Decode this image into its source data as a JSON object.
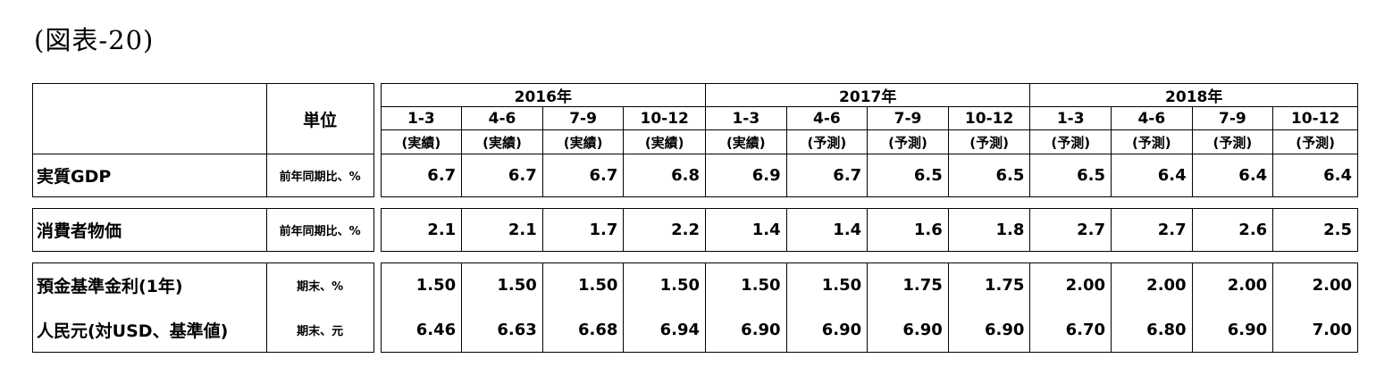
{
  "title": "(図表-20)",
  "unit_header": "単位",
  "years": [
    {
      "label": "2016年"
    },
    {
      "label": "2017年"
    },
    {
      "label": "2018年"
    }
  ],
  "quarters": [
    "1-3",
    "4-6",
    "7-9",
    "10-12",
    "1-3",
    "4-6",
    "7-9",
    "10-12",
    "1-3",
    "4-6",
    "7-9",
    "10-12"
  ],
  "kinds": [
    "(実績)",
    "(実績)",
    "(実績)",
    "(実績)",
    "(実績)",
    "(予測)",
    "(予測)",
    "(予測)",
    "(予測)",
    "(予測)",
    "(予測)",
    "(予測)"
  ],
  "rows": [
    {
      "label": "実質GDP",
      "unit": "前年同期比、%",
      "values": [
        "6.7",
        "6.7",
        "6.7",
        "6.8",
        "6.9",
        "6.7",
        "6.5",
        "6.5",
        "6.5",
        "6.4",
        "6.4",
        "6.4"
      ]
    },
    {
      "label": "消費者物価",
      "unit": "前年同期比、%",
      "values": [
        "2.1",
        "2.1",
        "1.7",
        "2.2",
        "1.4",
        "1.4",
        "1.6",
        "1.8",
        "2.7",
        "2.7",
        "2.6",
        "2.5"
      ]
    },
    {
      "label": "預金基準金利(1年)",
      "unit": "期末、%",
      "values": [
        "1.50",
        "1.50",
        "1.50",
        "1.50",
        "1.50",
        "1.50",
        "1.75",
        "1.75",
        "2.00",
        "2.00",
        "2.00",
        "2.00"
      ]
    },
    {
      "label": "人民元(対USD、基準値)",
      "unit": "期末、元",
      "values": [
        "6.46",
        "6.63",
        "6.68",
        "6.94",
        "6.90",
        "6.90",
        "6.90",
        "6.90",
        "6.70",
        "6.80",
        "6.90",
        "7.00"
      ]
    }
  ]
}
